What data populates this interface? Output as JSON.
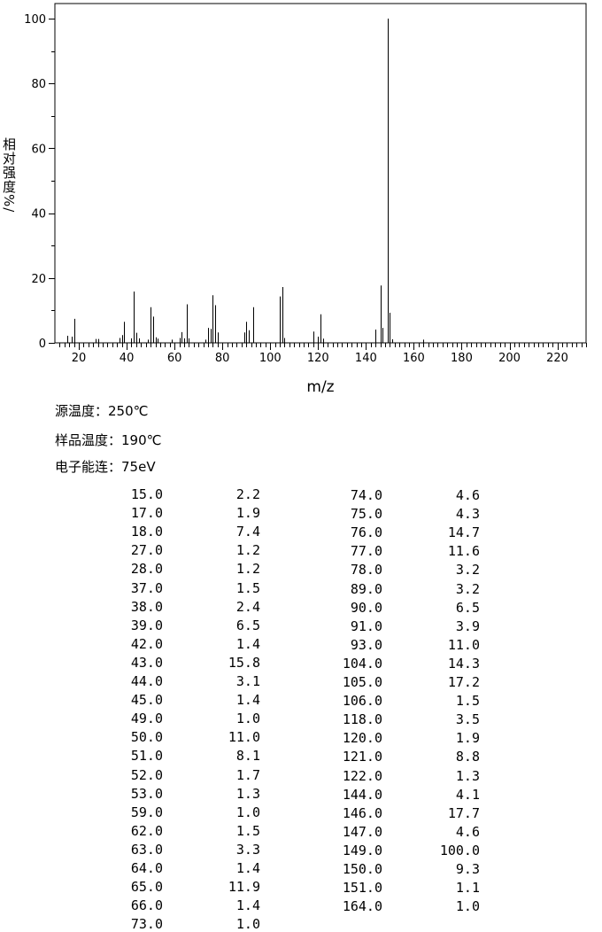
{
  "chart_data": {
    "type": "bar",
    "title": "",
    "xlabel": "m/z",
    "ylabel": "相对强度%/",
    "xlim": [
      10,
      232
    ],
    "ylim": [
      0,
      100
    ],
    "xticks": [
      20,
      40,
      60,
      80,
      100,
      120,
      140,
      160,
      180,
      200,
      220
    ],
    "yticks": [
      0,
      20,
      40,
      60,
      80,
      100
    ],
    "grid": false,
    "x": [
      15,
      17,
      18,
      27,
      28,
      37,
      38,
      39,
      42,
      43,
      44,
      45,
      49,
      50,
      51,
      52,
      53,
      59,
      62,
      63,
      64,
      65,
      66,
      73,
      74,
      75,
      76,
      77,
      78,
      89,
      90,
      91,
      93,
      104,
      105,
      106,
      118,
      120,
      121,
      122,
      144,
      146,
      147,
      149,
      150,
      151,
      164
    ],
    "values": [
      2.2,
      1.9,
      7.4,
      1.2,
      1.2,
      1.5,
      2.4,
      6.5,
      1.4,
      15.8,
      3.1,
      1.4,
      1.0,
      11.0,
      8.1,
      1.7,
      1.3,
      1.0,
      1.5,
      3.3,
      1.4,
      11.9,
      1.4,
      1.0,
      4.6,
      4.3,
      14.7,
      11.6,
      3.2,
      3.2,
      6.5,
      3.9,
      11.0,
      14.3,
      17.2,
      1.5,
      3.5,
      1.9,
      8.8,
      1.3,
      4.1,
      17.7,
      4.6,
      100.0,
      9.3,
      1.1,
      1.0
    ]
  },
  "conditions": {
    "source_temp": "源温度：250℃",
    "sample_temp": "样品温度：190℃",
    "electron_energy": "电子能连：75eV"
  },
  "table": {
    "left": [
      [
        "15.0",
        "2.2"
      ],
      [
        "17.0",
        "1.9"
      ],
      [
        "18.0",
        "7.4"
      ],
      [
        "27.0",
        "1.2"
      ],
      [
        "28.0",
        "1.2"
      ],
      [
        "37.0",
        "1.5"
      ],
      [
        "38.0",
        "2.4"
      ],
      [
        "39.0",
        "6.5"
      ],
      [
        "42.0",
        "1.4"
      ],
      [
        "43.0",
        "15.8"
      ],
      [
        "44.0",
        "3.1"
      ],
      [
        "45.0",
        "1.4"
      ],
      [
        "49.0",
        "1.0"
      ],
      [
        "50.0",
        "11.0"
      ],
      [
        "51.0",
        "8.1"
      ],
      [
        "52.0",
        "1.7"
      ],
      [
        "53.0",
        "1.3"
      ],
      [
        "59.0",
        "1.0"
      ],
      [
        "62.0",
        "1.5"
      ],
      [
        "63.0",
        "3.3"
      ],
      [
        "64.0",
        "1.4"
      ],
      [
        "65.0",
        "11.9"
      ],
      [
        "66.0",
        "1.4"
      ],
      [
        "73.0",
        "1.0"
      ]
    ],
    "right": [
      [
        "74.0",
        "4.6"
      ],
      [
        "75.0",
        "4.3"
      ],
      [
        "76.0",
        "14.7"
      ],
      [
        "77.0",
        "11.6"
      ],
      [
        "78.0",
        "3.2"
      ],
      [
        "89.0",
        "3.2"
      ],
      [
        "90.0",
        "6.5"
      ],
      [
        "91.0",
        "3.9"
      ],
      [
        "93.0",
        "11.0"
      ],
      [
        "104.0",
        "14.3"
      ],
      [
        "105.0",
        "17.2"
      ],
      [
        "106.0",
        "1.5"
      ],
      [
        "118.0",
        "3.5"
      ],
      [
        "120.0",
        "1.9"
      ],
      [
        "121.0",
        "8.8"
      ],
      [
        "122.0",
        "1.3"
      ],
      [
        "144.0",
        "4.1"
      ],
      [
        "146.0",
        "17.7"
      ],
      [
        "147.0",
        "4.6"
      ],
      [
        "149.0",
        "100.0"
      ],
      [
        "150.0",
        "9.3"
      ],
      [
        "151.0",
        "1.1"
      ],
      [
        "164.0",
        "1.0"
      ]
    ]
  }
}
